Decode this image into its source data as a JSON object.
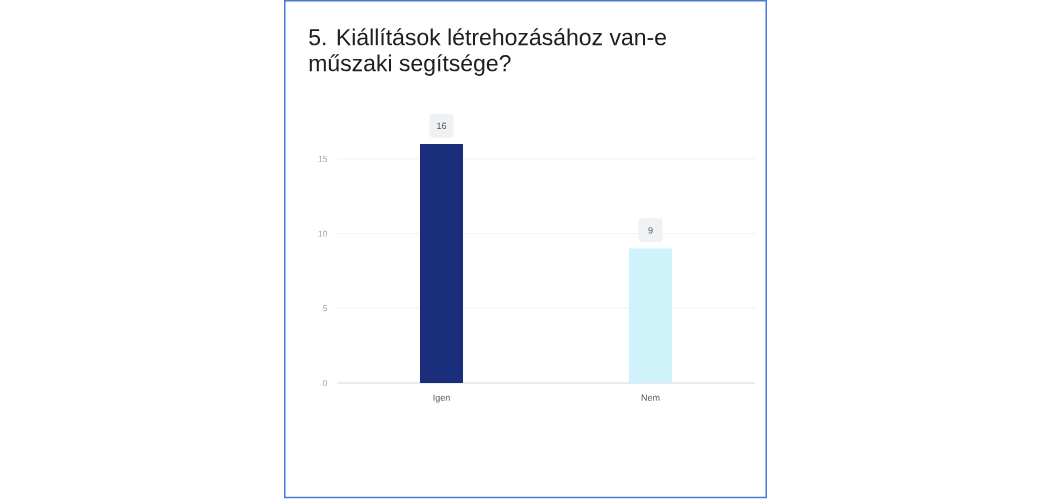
{
  "chart_data": {
    "type": "bar",
    "title": "5. Kiállítások létrehozásához van-e műszaki segítsége?",
    "categories": [
      "Igen",
      "Nem"
    ],
    "values": [
      16,
      9
    ],
    "colors": [
      "#1a2e7c",
      "#d0f2fa"
    ],
    "ylim": [
      0,
      16
    ],
    "yticks": [
      0,
      5,
      10,
      15
    ],
    "grid": "y",
    "data_labels": true
  }
}
